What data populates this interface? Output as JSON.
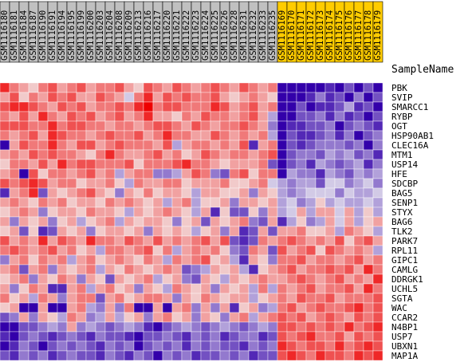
{
  "chart_data": {
    "type": "heatmap",
    "title": "",
    "row_header": "SampleName",
    "group_colors": {
      "A": "#c0c0c0",
      "B": "#ffcc00"
    },
    "columns": [
      {
        "label": "GSM1116180",
        "group": "A"
      },
      {
        "label": "GSM1116181",
        "group": "A"
      },
      {
        "label": "GSM1116184",
        "group": "A"
      },
      {
        "label": "GSM1116187",
        "group": "A"
      },
      {
        "label": "GSM1116190",
        "group": "A"
      },
      {
        "label": "GSM1116191",
        "group": "A"
      },
      {
        "label": "GSM1116194",
        "group": "A"
      },
      {
        "label": "GSM1116195",
        "group": "A"
      },
      {
        "label": "GSM1116199",
        "group": "A"
      },
      {
        "label": "GSM1116200",
        "group": "A"
      },
      {
        "label": "GSM1116203",
        "group": "A"
      },
      {
        "label": "GSM1116204",
        "group": "A"
      },
      {
        "label": "GSM1116208",
        "group": "A"
      },
      {
        "label": "GSM1116209",
        "group": "A"
      },
      {
        "label": "GSM1116213",
        "group": "A"
      },
      {
        "label": "GSM1116216",
        "group": "A"
      },
      {
        "label": "GSM1116217",
        "group": "A"
      },
      {
        "label": "GSM1116220",
        "group": "A"
      },
      {
        "label": "GSM1116221",
        "group": "A"
      },
      {
        "label": "GSM1116222",
        "group": "A"
      },
      {
        "label": "GSM1116223",
        "group": "A"
      },
      {
        "label": "GSM1116224",
        "group": "A"
      },
      {
        "label": "GSM1116225",
        "group": "A"
      },
      {
        "label": "GSM1116226",
        "group": "A"
      },
      {
        "label": "GSM1116228",
        "group": "A"
      },
      {
        "label": "GSM1116231",
        "group": "A"
      },
      {
        "label": "GSM1116232",
        "group": "A"
      },
      {
        "label": "GSM1116233",
        "group": "A"
      },
      {
        "label": "GSM1116235",
        "group": "A"
      },
      {
        "label": "GSM1116169",
        "group": "B"
      },
      {
        "label": "GSM1116170",
        "group": "B"
      },
      {
        "label": "GSM1116171",
        "group": "B"
      },
      {
        "label": "GSM1116172",
        "group": "B"
      },
      {
        "label": "GSM1116173",
        "group": "B"
      },
      {
        "label": "GSM1116174",
        "group": "B"
      },
      {
        "label": "GSM1116175",
        "group": "B"
      },
      {
        "label": "GSM1116176",
        "group": "B"
      },
      {
        "label": "GSM1116177",
        "group": "B"
      },
      {
        "label": "GSM1116178",
        "group": "B"
      },
      {
        "label": "GSM1116179",
        "group": "B"
      }
    ],
    "rows": [
      "PBK",
      "SVIP",
      "SMARCC1",
      "RYBP",
      "OGT",
      "HSP90AB1",
      "CLEC16A",
      "MTM1",
      "USP14",
      "HFE",
      "SDCBP",
      "BAG5",
      "SENP1",
      "STYX",
      "BAG6",
      "TLK2",
      "PARK7",
      "RPL11",
      "GIPC1",
      "CAMLG",
      "DDRGK1",
      "UCHL5",
      "SGTA",
      "WAC",
      "CCAR2",
      "N4BP1",
      "USP7",
      "UBXN1",
      "MAP1A"
    ],
    "color_scale": {
      "low": "#3300aa",
      "mid": "#f2f2f2",
      "high": "#ee0000"
    },
    "values": [
      [
        5,
        3,
        2,
        1,
        3,
        4,
        2,
        3,
        4,
        2,
        3,
        3,
        4,
        2,
        1,
        4,
        3,
        2,
        4,
        3,
        2,
        3,
        4,
        3,
        2,
        4,
        3,
        2,
        3,
        -6,
        -8,
        -8,
        -8,
        -8,
        -5,
        -6,
        -4,
        -9,
        -4,
        -9
      ],
      [
        2,
        4,
        1,
        3,
        2,
        4,
        3,
        4,
        2,
        2,
        4,
        3,
        2,
        -1,
        3,
        5,
        2,
        4,
        3,
        4,
        3,
        3,
        4,
        2,
        1,
        2,
        3,
        2,
        1,
        -7,
        -9,
        -6,
        -5,
        -3,
        -5,
        -4,
        -6,
        -3,
        -8,
        -4
      ],
      [
        4,
        5,
        5,
        4,
        3,
        2,
        4,
        3,
        4,
        2,
        3,
        3,
        4,
        3,
        5,
        6,
        3,
        4,
        4,
        3,
        3,
        3,
        5,
        4,
        2,
        3,
        4,
        2,
        3,
        -8,
        -7,
        -4,
        -6,
        -5,
        -5,
        -4,
        -2,
        -5,
        -4,
        -6
      ],
      [
        3,
        2,
        4,
        2,
        5,
        3,
        2,
        4,
        3,
        4,
        2,
        3,
        4,
        2,
        3,
        5,
        2,
        2,
        1,
        3,
        2,
        4,
        3,
        3,
        2,
        3,
        4,
        2,
        -2,
        -6,
        -9,
        -4,
        -4,
        -3,
        -5,
        -3,
        -5,
        -4,
        -6,
        -4
      ],
      [
        4,
        4,
        4,
        3,
        3,
        5,
        3,
        4,
        4,
        3,
        3,
        2,
        3,
        3,
        2,
        3,
        4,
        4,
        3,
        2,
        4,
        3,
        2,
        3,
        3,
        4,
        3,
        2,
        -3,
        -9,
        -5,
        -5,
        -4,
        -4,
        -3,
        -6,
        -4,
        -3,
        -4,
        -5
      ],
      [
        3,
        2,
        3,
        4,
        2,
        5,
        4,
        3,
        3,
        2,
        3,
        4,
        3,
        3,
        4,
        2,
        3,
        5,
        3,
        3,
        2,
        2,
        4,
        3,
        2,
        3,
        2,
        3,
        -2,
        -9,
        -4,
        -5,
        -5,
        -4,
        -3,
        -5,
        -3,
        -6,
        -4,
        -3
      ],
      [
        -6,
        2,
        4,
        3,
        3,
        5,
        3,
        2,
        4,
        4,
        2,
        3,
        4,
        3,
        3,
        3,
        2,
        4,
        -2,
        2,
        3,
        3,
        2,
        3,
        2,
        4,
        -5,
        2,
        3,
        -6,
        -4,
        -5,
        -4,
        -3,
        -3,
        -3,
        -4,
        -3,
        -6,
        -3
      ],
      [
        2,
        3,
        2,
        4,
        3,
        4,
        3,
        3,
        2,
        1,
        3,
        5,
        3,
        2,
        2,
        3,
        4,
        2,
        3,
        1,
        2,
        4,
        3,
        2,
        3,
        3,
        2,
        3,
        4,
        -7,
        -4,
        -3,
        -3,
        -4,
        -2,
        -3,
        -2,
        -4,
        -3,
        -5
      ],
      [
        1,
        3,
        3,
        2,
        4,
        2,
        5,
        3,
        4,
        4,
        3,
        3,
        3,
        4,
        1,
        3,
        3,
        3,
        4,
        5,
        3,
        3,
        2,
        1,
        2,
        2,
        2,
        3,
        -4,
        -6,
        -4,
        -3,
        -5,
        -2,
        -3,
        -4,
        -3,
        -2,
        -5,
        -3
      ],
      [
        2,
        3,
        -6,
        4,
        1,
        3,
        3,
        2,
        3,
        4,
        2,
        3,
        -2,
        2,
        3,
        3,
        -3,
        -3,
        -2,
        2,
        4,
        3,
        -3,
        -4,
        3,
        4,
        1,
        3,
        3,
        -6,
        -2,
        -3,
        -3,
        -5,
        -2,
        -3,
        -4,
        -2,
        -3,
        -2
      ],
      [
        4,
        3,
        4,
        5,
        4,
        2,
        3,
        3,
        1,
        2,
        2,
        3,
        1,
        -2,
        3,
        2,
        2,
        3,
        3,
        1,
        2,
        2,
        2,
        3,
        1,
        1,
        2,
        3,
        -1,
        -2,
        -3,
        -2,
        -2,
        -4,
        -1,
        -1,
        -3,
        -2,
        -1,
        -3
      ],
      [
        -5,
        2,
        3,
        5,
        -4,
        2,
        1,
        2,
        3,
        4,
        2,
        1,
        -3,
        2,
        1,
        3,
        1,
        2,
        2,
        1,
        -2,
        2,
        2,
        1,
        1,
        2,
        -3,
        2,
        1,
        -2,
        -3,
        -2,
        -1,
        -1,
        -1,
        -3,
        -1,
        -2,
        -2,
        -1
      ],
      [
        2,
        3,
        2,
        1,
        3,
        2,
        3,
        1,
        2,
        2,
        1,
        3,
        2,
        3,
        2,
        1,
        2,
        -2,
        2,
        3,
        -2,
        1,
        1,
        2,
        -3,
        2,
        2,
        1,
        2,
        -2,
        -1,
        -3,
        -2,
        1,
        -2,
        -1,
        -2,
        -2,
        -1,
        -2
      ],
      [
        1,
        2,
        3,
        2,
        -3,
        1,
        2,
        2,
        1,
        3,
        2,
        2,
        1,
        -2,
        2,
        1,
        2,
        3,
        2,
        1,
        -2,
        2,
        -5,
        1,
        -4,
        -4,
        1,
        -3,
        2,
        -2,
        -1,
        2,
        -2,
        2,
        2,
        -1,
        2,
        -2,
        1,
        -2
      ],
      [
        2,
        -3,
        2,
        1,
        2,
        -3,
        1,
        2,
        -2,
        1,
        2,
        3,
        -2,
        2,
        1,
        2,
        2,
        1,
        -3,
        1,
        2,
        -4,
        2,
        1,
        2,
        3,
        -3,
        -4,
        2,
        -5,
        -2,
        1,
        -3,
        -2,
        2,
        -1,
        2,
        -2,
        1,
        2
      ],
      [
        1,
        2,
        -4,
        1,
        -5,
        -4,
        2,
        1,
        2,
        -3,
        1,
        2,
        2,
        1,
        2,
        -3,
        2,
        1,
        2,
        1,
        -2,
        1,
        2,
        -3,
        2,
        -5,
        -4,
        2,
        -4,
        2,
        2,
        3,
        1,
        1,
        2,
        -2,
        3,
        2,
        1,
        -2
      ],
      [
        4,
        2,
        3,
        2,
        5,
        2,
        4,
        3,
        2,
        5,
        3,
        3,
        2,
        4,
        3,
        2,
        4,
        2,
        3,
        2,
        3,
        4,
        2,
        4,
        -4,
        -5,
        -4,
        3,
        2,
        3,
        4,
        3,
        2,
        3,
        2,
        4,
        1,
        3,
        4,
        2
      ],
      [
        3,
        4,
        3,
        2,
        3,
        4,
        2,
        3,
        1,
        2,
        -2,
        3,
        3,
        2,
        3,
        4,
        1,
        3,
        -2,
        2,
        3,
        2,
        3,
        1,
        -3,
        -4,
        3,
        2,
        -4,
        4,
        2,
        3,
        4,
        1,
        4,
        3,
        2,
        3,
        2,
        -2
      ],
      [
        -3,
        2,
        3,
        1,
        3,
        2,
        3,
        -2,
        2,
        3,
        1,
        2,
        3,
        2,
        1,
        3,
        2,
        -2,
        3,
        2,
        3,
        4,
        1,
        2,
        -2,
        -5,
        2,
        1,
        -3,
        3,
        3,
        4,
        2,
        3,
        3,
        2,
        3,
        4,
        2,
        3
      ],
      [
        2,
        3,
        -4,
        2,
        3,
        -3,
        2,
        1,
        2,
        3,
        -2,
        2,
        1,
        3,
        2,
        1,
        2,
        3,
        2,
        -4,
        -3,
        -2,
        2,
        1,
        2,
        -2,
        -5,
        1,
        2,
        3,
        4,
        2,
        3,
        3,
        4,
        3,
        4,
        2,
        5,
        3
      ],
      [
        1,
        2,
        3,
        -3,
        2,
        1,
        3,
        2,
        -3,
        2,
        1,
        -4,
        2,
        1,
        2,
        3,
        -2,
        1,
        2,
        -3,
        -4,
        2,
        1,
        -2,
        2,
        1,
        2,
        3,
        2,
        2,
        3,
        4,
        3,
        2,
        3,
        4,
        2,
        3,
        2,
        5
      ],
      [
        2,
        -3,
        1,
        3,
        2,
        -5,
        -5,
        2,
        3,
        -2,
        2,
        3,
        1,
        2,
        -3,
        2,
        1,
        -2,
        3,
        2,
        1,
        2,
        -3,
        2,
        1,
        2,
        -2,
        3,
        -2,
        3,
        2,
        3,
        4,
        2,
        3,
        3,
        4,
        2,
        5,
        3
      ],
      [
        3,
        1,
        2,
        -2,
        3,
        2,
        -3,
        2,
        3,
        3,
        -4,
        2,
        3,
        1,
        2,
        3,
        3,
        2,
        -3,
        2,
        1,
        3,
        2,
        1,
        2,
        2,
        -2,
        1,
        2,
        3,
        2,
        4,
        3,
        3,
        4,
        2,
        3,
        3,
        3,
        4
      ],
      [
        1,
        2,
        -6,
        -6,
        2,
        -6,
        -6,
        2,
        3,
        -2,
        -3,
        2,
        -3,
        3,
        -6,
        -6,
        2,
        -6,
        2,
        3,
        -3,
        2,
        -3,
        2,
        -5,
        1,
        2,
        -3,
        -2,
        3,
        4,
        2,
        3,
        4,
        3,
        3,
        4,
        5,
        3,
        4
      ],
      [
        -4,
        -3,
        2,
        -3,
        2,
        1,
        -2,
        3,
        2,
        -3,
        -2,
        2,
        -2,
        1,
        2,
        -3,
        2,
        3,
        1,
        2,
        -3,
        2,
        1,
        -3,
        2,
        3,
        -2,
        2,
        3,
        4,
        3,
        4,
        2,
        3,
        4,
        3,
        2,
        4,
        3,
        4
      ],
      [
        -7,
        -6,
        -4,
        -4,
        -3,
        -2,
        -3,
        2,
        -3,
        -2,
        -3,
        -4,
        -3,
        -2,
        -3,
        -5,
        -6,
        -4,
        -3,
        -2,
        -3,
        -4,
        -3,
        -2,
        -3,
        -4,
        -3,
        -2,
        -3,
        4,
        4,
        3,
        4,
        3,
        4,
        3,
        5,
        3,
        4,
        5
      ],
      [
        -5,
        -7,
        -4,
        -3,
        -4,
        -5,
        -4,
        -3,
        -4,
        -5,
        -3,
        -4,
        -4,
        -5,
        -7,
        -4,
        -4,
        -3,
        -4,
        -5,
        -3,
        -4,
        -3,
        -5,
        -4,
        -3,
        -3,
        -5,
        -4,
        4,
        3,
        4,
        5,
        3,
        3,
        4,
        2,
        4,
        3,
        4
      ],
      [
        -6,
        -5,
        -3,
        -4,
        -6,
        -4,
        -3,
        -4,
        -3,
        -4,
        -5,
        -3,
        -4,
        -3,
        -6,
        -4,
        -3,
        -4,
        -3,
        -5,
        -3,
        -4,
        -3,
        -4,
        -4,
        -5,
        -3,
        -4,
        -3,
        5,
        4,
        3,
        4,
        4,
        3,
        5,
        3,
        4,
        5,
        4
      ],
      [
        -4,
        -5,
        -3,
        -4,
        -3,
        -5,
        -4,
        -3,
        -4,
        -4,
        -5,
        -3,
        -4,
        -5,
        -3,
        -4,
        -6,
        -3,
        -4,
        -3,
        -5,
        -4,
        -4,
        -3,
        -4,
        -3,
        -5,
        -4,
        -4,
        4,
        5,
        4,
        3,
        5,
        4,
        4,
        3,
        5,
        4,
        5
      ]
    ]
  }
}
